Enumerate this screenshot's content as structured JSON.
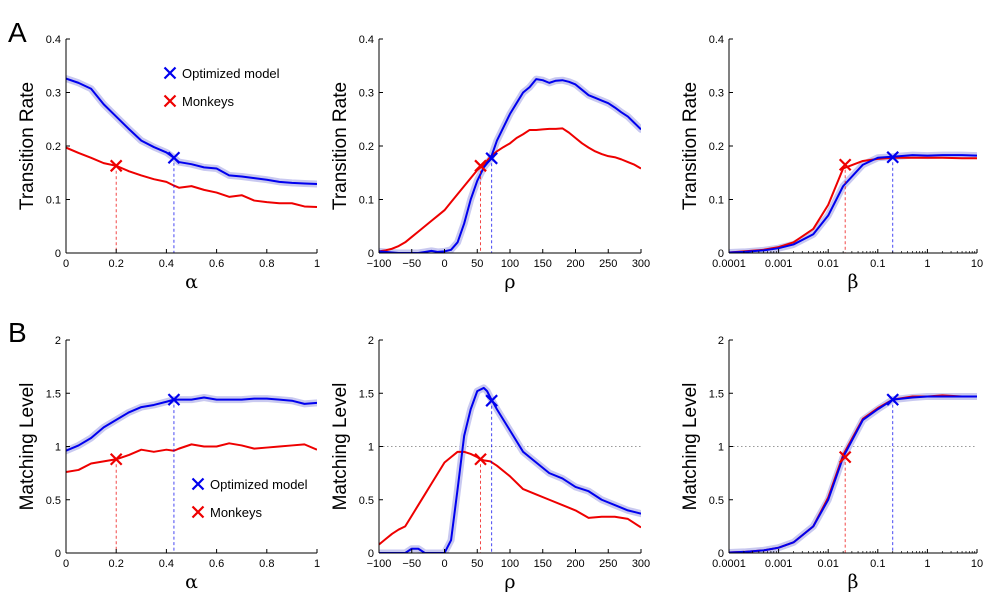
{
  "panel_labels": [
    "A",
    "B"
  ],
  "colors": {
    "model": "#0000ee",
    "monkeys": "#ee0000",
    "model_band": "#c9c9f0",
    "monkeys_band": "#f0c6c6",
    "reference_line": "#9a9a9a"
  },
  "legend": [
    {
      "label": "Optimized model",
      "color": "#0000ee",
      "marker": "x"
    },
    {
      "label": "Monkeys",
      "color": "#ee0000",
      "marker": "x"
    }
  ],
  "chart_data": [
    {
      "id": "A1",
      "type": "line",
      "scale": "linear",
      "xlabel": "α",
      "ylabel": "Transition Rate",
      "xlim": [
        0,
        1
      ],
      "ylim": [
        0,
        0.4
      ],
      "xticks": [
        0,
        0.2,
        0.4,
        0.6,
        0.8,
        1
      ],
      "xticklabels": [
        "0",
        "0.2",
        "0.4",
        "0.6",
        "0.8",
        "1"
      ],
      "yticks": [
        0,
        0.1,
        0.2,
        0.3,
        0.4
      ],
      "yticklabels": [
        "0",
        "0.1",
        "0.2",
        "0.3",
        "0.4"
      ],
      "series": [
        {
          "name": "Optimized model",
          "color": "#0000ee",
          "band": true,
          "x": [
            0,
            0.05,
            0.1,
            0.15,
            0.2,
            0.25,
            0.3,
            0.35,
            0.4,
            0.43,
            0.45,
            0.5,
            0.55,
            0.6,
            0.65,
            0.7,
            0.75,
            0.8,
            0.85,
            0.9,
            0.95,
            1.0
          ],
          "y": [
            0.326,
            0.318,
            0.307,
            0.278,
            0.255,
            0.232,
            0.21,
            0.198,
            0.188,
            0.178,
            0.17,
            0.166,
            0.16,
            0.158,
            0.145,
            0.143,
            0.14,
            0.137,
            0.133,
            0.131,
            0.13,
            0.129
          ]
        },
        {
          "name": "Monkeys",
          "color": "#ee0000",
          "band": false,
          "x": [
            0,
            0.05,
            0.1,
            0.15,
            0.2,
            0.25,
            0.3,
            0.35,
            0.4,
            0.43,
            0.45,
            0.5,
            0.55,
            0.6,
            0.65,
            0.7,
            0.75,
            0.8,
            0.85,
            0.9,
            0.95,
            1.0
          ],
          "y": [
            0.197,
            0.187,
            0.178,
            0.168,
            0.163,
            0.153,
            0.145,
            0.138,
            0.133,
            0.126,
            0.122,
            0.125,
            0.118,
            0.113,
            0.105,
            0.108,
            0.098,
            0.095,
            0.093,
            0.093,
            0.087,
            0.086
          ]
        }
      ],
      "markers": [
        {
          "series": "Optimized model",
          "x": 0.43,
          "y": 0.178,
          "color": "#0000ee"
        },
        {
          "series": "Monkeys",
          "x": 0.2,
          "y": 0.163,
          "color": "#ee0000"
        }
      ],
      "hlines": [],
      "legend": true
    },
    {
      "id": "A2",
      "type": "line",
      "scale": "linear",
      "xlabel": "ρ",
      "ylabel": "Transition Rate",
      "xlim": [
        -100,
        300
      ],
      "ylim": [
        0,
        0.4
      ],
      "xticks": [
        -100,
        -50,
        0,
        50,
        100,
        150,
        200,
        250,
        300
      ],
      "xticklabels": [
        "−100",
        "−50",
        "0",
        "50",
        "100",
        "150",
        "200",
        "250",
        "300"
      ],
      "yticks": [
        0,
        0.1,
        0.2,
        0.3,
        0.4
      ],
      "yticklabels": [
        "0",
        "0.1",
        "0.2",
        "0.3",
        "0.4"
      ],
      "series": [
        {
          "name": "Optimized model",
          "color": "#0000ee",
          "band": true,
          "x": [
            -100,
            -90,
            -80,
            -70,
            -60,
            -50,
            -40,
            -30,
            -20,
            -10,
            0,
            10,
            20,
            30,
            40,
            50,
            60,
            70,
            80,
            90,
            100,
            110,
            120,
            130,
            140,
            150,
            160,
            170,
            180,
            190,
            200,
            210,
            220,
            230,
            240,
            250,
            260,
            270,
            280,
            290,
            300
          ],
          "y": [
            0.003,
            0.002,
            0.001,
            0.0,
            0.0,
            0.0,
            0.0,
            0.002,
            0.004,
            0.002,
            0.003,
            0.006,
            0.02,
            0.055,
            0.1,
            0.135,
            0.16,
            0.175,
            0.21,
            0.235,
            0.26,
            0.28,
            0.3,
            0.31,
            0.325,
            0.323,
            0.318,
            0.322,
            0.323,
            0.32,
            0.315,
            0.305,
            0.295,
            0.29,
            0.285,
            0.28,
            0.272,
            0.263,
            0.255,
            0.243,
            0.231
          ]
        },
        {
          "name": "Monkeys",
          "color": "#ee0000",
          "band": false,
          "x": [
            -100,
            -90,
            -80,
            -70,
            -60,
            -50,
            -40,
            -30,
            -20,
            -10,
            0,
            10,
            20,
            30,
            40,
            50,
            60,
            70,
            80,
            90,
            100,
            110,
            120,
            130,
            140,
            150,
            160,
            170,
            180,
            190,
            200,
            210,
            220,
            230,
            240,
            250,
            260,
            270,
            280,
            290,
            300
          ],
          "y": [
            0.003,
            0.005,
            0.008,
            0.013,
            0.02,
            0.03,
            0.04,
            0.05,
            0.06,
            0.07,
            0.08,
            0.095,
            0.11,
            0.125,
            0.14,
            0.155,
            0.165,
            0.18,
            0.19,
            0.198,
            0.205,
            0.215,
            0.222,
            0.23,
            0.23,
            0.231,
            0.232,
            0.232,
            0.233,
            0.225,
            0.215,
            0.205,
            0.197,
            0.19,
            0.185,
            0.181,
            0.179,
            0.175,
            0.17,
            0.165,
            0.158
          ]
        }
      ],
      "markers": [
        {
          "series": "Optimized model",
          "x": 72,
          "y": 0.177,
          "color": "#0000ee"
        },
        {
          "series": "Monkeys",
          "x": 55,
          "y": 0.163,
          "color": "#ee0000"
        }
      ],
      "hlines": [],
      "legend": false
    },
    {
      "id": "A3",
      "type": "line",
      "scale": "log",
      "xlabel": "β",
      "ylabel": "Transition Rate",
      "xlim": [
        0.0001,
        10
      ],
      "ylim": [
        0,
        0.4
      ],
      "xticks": [
        0.0001,
        0.001,
        0.01,
        0.1,
        1,
        10
      ],
      "xticklabels": [
        "0.0001",
        "0.001",
        "0.01",
        "0.1",
        "1",
        "10"
      ],
      "yticks": [
        0,
        0.1,
        0.2,
        0.3,
        0.4
      ],
      "yticklabels": [
        "0",
        "0.1",
        "0.2",
        "0.3",
        "0.4"
      ],
      "series": [
        {
          "name": "Optimized model",
          "color": "#0000ee",
          "band": true,
          "x": [
            0.0001,
            0.0002,
            0.0005,
            0.001,
            0.002,
            0.005,
            0.01,
            0.02,
            0.05,
            0.1,
            0.2,
            0.5,
            1,
            2,
            5,
            10
          ],
          "y": [
            0.001,
            0.002,
            0.005,
            0.009,
            0.016,
            0.035,
            0.07,
            0.125,
            0.165,
            0.178,
            0.18,
            0.183,
            0.182,
            0.183,
            0.183,
            0.182
          ]
        },
        {
          "name": "Monkeys",
          "color": "#ee0000",
          "band": false,
          "x": [
            0.0001,
            0.0002,
            0.0005,
            0.001,
            0.002,
            0.005,
            0.01,
            0.02,
            0.05,
            0.1,
            0.2,
            0.5,
            1,
            2,
            5,
            10
          ],
          "y": [
            0.001,
            0.003,
            0.006,
            0.011,
            0.02,
            0.045,
            0.09,
            0.158,
            0.172,
            0.176,
            0.178,
            0.178,
            0.178,
            0.178,
            0.177,
            0.177
          ]
        }
      ],
      "markers": [
        {
          "series": "Optimized model",
          "x": 0.2,
          "y": 0.179,
          "color": "#0000ee"
        },
        {
          "series": "Monkeys",
          "x": 0.022,
          "y": 0.165,
          "color": "#ee0000"
        }
      ],
      "hlines": [],
      "legend": false
    },
    {
      "id": "B1",
      "type": "line",
      "scale": "linear",
      "xlabel": "α",
      "ylabel": "Matching Level",
      "xlim": [
        0,
        1
      ],
      "ylim": [
        0,
        2
      ],
      "xticks": [
        0,
        0.2,
        0.4,
        0.6,
        0.8,
        1
      ],
      "xticklabels": [
        "0",
        "0.2",
        "0.4",
        "0.6",
        "0.8",
        "1"
      ],
      "yticks": [
        0,
        0.5,
        1,
        1.5,
        2
      ],
      "yticklabels": [
        "0",
        "0.5",
        "1",
        "1.5",
        "2"
      ],
      "series": [
        {
          "name": "Optimized model",
          "color": "#0000ee",
          "band": true,
          "x": [
            0,
            0.05,
            0.1,
            0.15,
            0.2,
            0.25,
            0.3,
            0.35,
            0.4,
            0.43,
            0.45,
            0.5,
            0.55,
            0.6,
            0.65,
            0.7,
            0.75,
            0.8,
            0.85,
            0.9,
            0.95,
            1.0
          ],
          "y": [
            0.96,
            1.01,
            1.08,
            1.18,
            1.25,
            1.32,
            1.37,
            1.39,
            1.42,
            1.44,
            1.44,
            1.44,
            1.46,
            1.44,
            1.44,
            1.44,
            1.45,
            1.45,
            1.44,
            1.43,
            1.4,
            1.41
          ]
        },
        {
          "name": "Monkeys",
          "color": "#ee0000",
          "band": false,
          "x": [
            0,
            0.05,
            0.1,
            0.15,
            0.2,
            0.25,
            0.3,
            0.35,
            0.4,
            0.43,
            0.45,
            0.5,
            0.55,
            0.6,
            0.65,
            0.7,
            0.75,
            0.8,
            0.85,
            0.9,
            0.95,
            1.0
          ],
          "y": [
            0.76,
            0.78,
            0.84,
            0.86,
            0.88,
            0.92,
            0.97,
            0.95,
            0.97,
            0.96,
            0.98,
            1.02,
            1.0,
            1.0,
            1.03,
            1.01,
            0.98,
            0.99,
            1.0,
            1.01,
            1.02,
            0.97
          ]
        }
      ],
      "markers": [
        {
          "series": "Optimized model",
          "x": 0.43,
          "y": 1.44,
          "color": "#0000ee"
        },
        {
          "series": "Monkeys",
          "x": 0.2,
          "y": 0.88,
          "color": "#ee0000"
        }
      ],
      "hlines": [],
      "legend": true
    },
    {
      "id": "B2",
      "type": "line",
      "scale": "linear",
      "xlabel": "ρ",
      "ylabel": "Matching Level",
      "xlim": [
        -100,
        300
      ],
      "ylim": [
        0,
        2
      ],
      "xticks": [
        -100,
        -50,
        0,
        50,
        100,
        150,
        200,
        250,
        300
      ],
      "xticklabels": [
        "−100",
        "−50",
        "0",
        "50",
        "100",
        "150",
        "200",
        "250",
        "300"
      ],
      "yticks": [
        0,
        0.5,
        1,
        1.5,
        2
      ],
      "yticklabels": [
        "0",
        "0.5",
        "1",
        "1.5",
        "2"
      ],
      "series": [
        {
          "name": "Optimized model",
          "color": "#0000ee",
          "band": true,
          "x": [
            -100,
            -80,
            -60,
            -50,
            -40,
            -30,
            -20,
            -10,
            0,
            10,
            20,
            30,
            40,
            50,
            60,
            65,
            70,
            80,
            100,
            120,
            140,
            160,
            180,
            200,
            220,
            240,
            260,
            280,
            300
          ],
          "y": [
            0.0,
            0.0,
            0.0,
            0.04,
            0.04,
            0.0,
            0.0,
            0.0,
            0.0,
            0.12,
            0.6,
            1.1,
            1.35,
            1.52,
            1.55,
            1.52,
            1.46,
            1.35,
            1.15,
            0.95,
            0.85,
            0.75,
            0.7,
            0.62,
            0.58,
            0.5,
            0.45,
            0.4,
            0.37
          ]
        },
        {
          "name": "Monkeys",
          "color": "#ee0000",
          "band": false,
          "x": [
            -100,
            -90,
            -80,
            -70,
            -60,
            -50,
            -40,
            -30,
            -20,
            -10,
            0,
            10,
            20,
            30,
            40,
            50,
            55,
            60,
            70,
            80,
            100,
            120,
            140,
            160,
            180,
            200,
            220,
            240,
            260,
            280,
            300
          ],
          "y": [
            0.08,
            0.13,
            0.18,
            0.22,
            0.25,
            0.35,
            0.45,
            0.55,
            0.65,
            0.75,
            0.85,
            0.9,
            0.95,
            0.95,
            0.93,
            0.9,
            0.88,
            0.87,
            0.86,
            0.82,
            0.72,
            0.6,
            0.55,
            0.5,
            0.45,
            0.4,
            0.33,
            0.34,
            0.34,
            0.32,
            0.24
          ]
        }
      ],
      "markers": [
        {
          "series": "Optimized model",
          "x": 72,
          "y": 1.43,
          "color": "#0000ee"
        },
        {
          "series": "Monkeys",
          "x": 55,
          "y": 0.88,
          "color": "#ee0000"
        }
      ],
      "hlines": [
        1
      ],
      "legend": false
    },
    {
      "id": "B3",
      "type": "line",
      "scale": "log",
      "xlabel": "β",
      "ylabel": "Matching Level",
      "xlim": [
        0.0001,
        10
      ],
      "ylim": [
        0,
        2
      ],
      "xticks": [
        0.0001,
        0.001,
        0.01,
        0.1,
        1,
        10
      ],
      "xticklabels": [
        "0.0001",
        "0.001",
        "0.01",
        "0.1",
        "1",
        "10"
      ],
      "yticks": [
        0,
        0.5,
        1,
        1.5,
        2
      ],
      "yticklabels": [
        "0",
        "0.5",
        "1",
        "1.5",
        "2"
      ],
      "series": [
        {
          "name": "Optimized model",
          "color": "#0000ee",
          "band": true,
          "x": [
            0.0001,
            0.0002,
            0.0005,
            0.001,
            0.002,
            0.005,
            0.01,
            0.02,
            0.05,
            0.1,
            0.2,
            0.5,
            1,
            2,
            5,
            10
          ],
          "y": [
            0.005,
            0.01,
            0.025,
            0.05,
            0.1,
            0.25,
            0.5,
            0.9,
            1.25,
            1.35,
            1.44,
            1.46,
            1.47,
            1.47,
            1.47,
            1.47
          ]
        },
        {
          "name": "Monkeys",
          "color": "#ee0000",
          "band": false,
          "x": [
            0.0001,
            0.0002,
            0.0005,
            0.001,
            0.002,
            0.005,
            0.01,
            0.02,
            0.05,
            0.1,
            0.2,
            0.5,
            1,
            2,
            5,
            10
          ],
          "y": [
            0.005,
            0.01,
            0.025,
            0.05,
            0.1,
            0.25,
            0.52,
            0.92,
            1.26,
            1.36,
            1.44,
            1.47,
            1.47,
            1.48,
            1.47,
            1.47
          ]
        }
      ],
      "markers": [
        {
          "series": "Optimized model",
          "x": 0.2,
          "y": 1.44,
          "color": "#0000ee"
        },
        {
          "series": "Monkeys",
          "x": 0.022,
          "y": 0.9,
          "color": "#ee0000"
        }
      ],
      "hlines": [
        1
      ],
      "legend": false
    }
  ]
}
